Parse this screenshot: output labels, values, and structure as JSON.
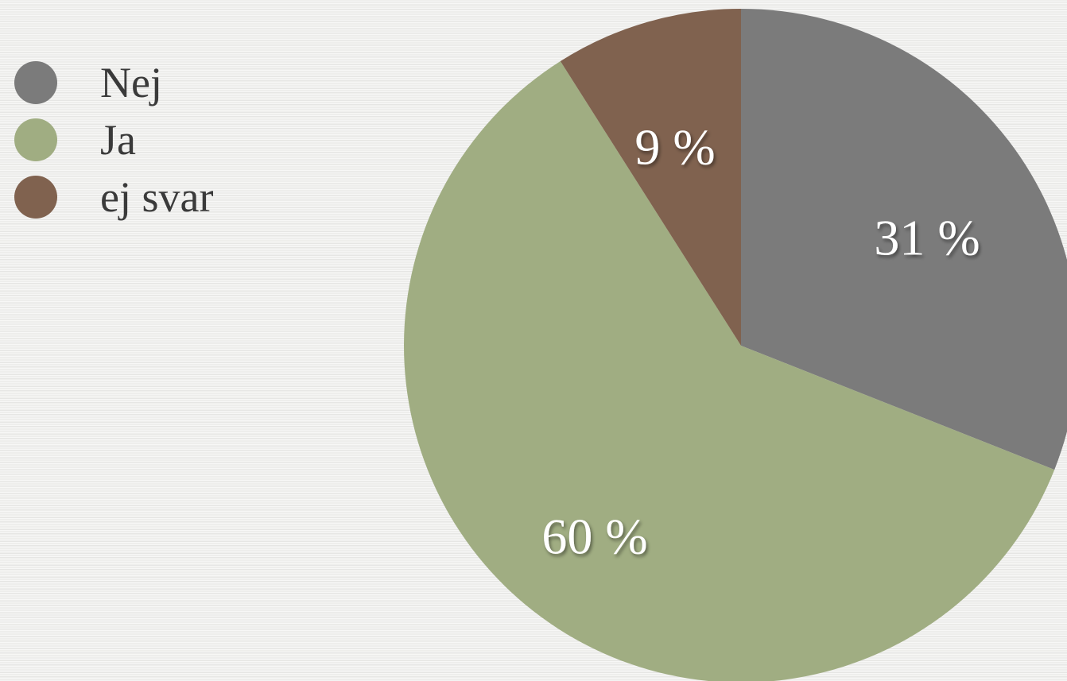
{
  "chart_data": {
    "type": "pie",
    "slices": [
      {
        "label": "Nej",
        "value": 31,
        "value_label": "31 %",
        "color": "#7b7b7b"
      },
      {
        "label": "Ja",
        "value": 60,
        "value_label": "60 %",
        "color": "#a0ad82"
      },
      {
        "label": "ej svar",
        "value": 9,
        "value_label": "9 %",
        "color": "#80624f"
      }
    ],
    "legend_position": "top-left",
    "start_angle": "12 o'clock",
    "direction": "clockwise"
  }
}
